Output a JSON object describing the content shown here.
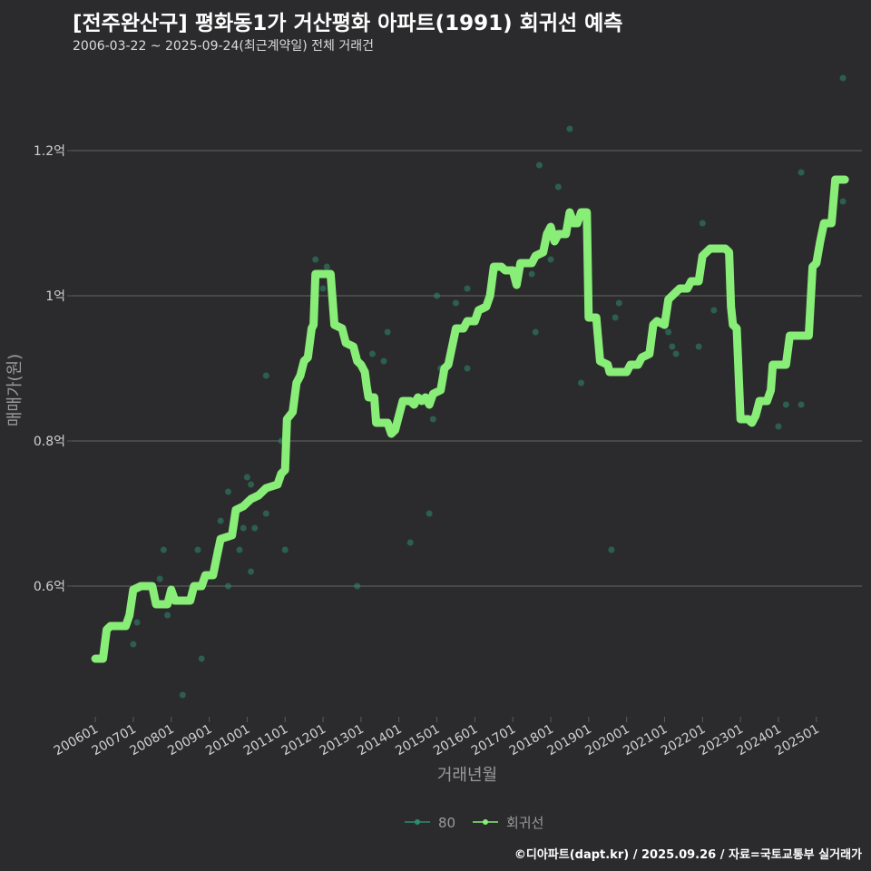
{
  "title": "[전주완산구] 평화동1가 거산평화 아파트(1991) 회귀선 예측",
  "subtitle": "2006-03-22 ~ 2025-09-24(최근계약일) 전체 거래건",
  "caption": "©디아파트(dapt.kr) / 2025.09.26 / 자료=국토교통부 실거래가",
  "colors": {
    "background": "#2b2b2d",
    "grid": "#5a5a5a",
    "scatter": "#2e8b6e",
    "line": "#88ee77",
    "text": "#d0d0d0"
  },
  "chart_data": {
    "type": "line",
    "xlabel": "거래년월",
    "ylabel": "매매가(원)",
    "ylim": [
      0.42,
      1.32
    ],
    "yticks": [
      {
        "value": 0.6,
        "label": "0.6억"
      },
      {
        "value": 0.8,
        "label": "0.8억"
      },
      {
        "value": 1.0,
        "label": "1억"
      },
      {
        "value": 1.2,
        "label": "1.2억"
      }
    ],
    "xlim": [
      2005.4,
      2026.2
    ],
    "xticks": [
      {
        "value": 2006,
        "label": "200601"
      },
      {
        "value": 2007,
        "label": "200701"
      },
      {
        "value": 2008,
        "label": "200801"
      },
      {
        "value": 2009,
        "label": "200901"
      },
      {
        "value": 2010,
        "label": "201001"
      },
      {
        "value": 2011,
        "label": "201101"
      },
      {
        "value": 2012,
        "label": "201201"
      },
      {
        "value": 2013,
        "label": "201301"
      },
      {
        "value": 2014,
        "label": "201401"
      },
      {
        "value": 2015,
        "label": "201501"
      },
      {
        "value": 2016,
        "label": "201601"
      },
      {
        "value": 2017,
        "label": "201701"
      },
      {
        "value": 2018,
        "label": "201801"
      },
      {
        "value": 2019,
        "label": "201901"
      },
      {
        "value": 2020,
        "label": "202001"
      },
      {
        "value": 2021,
        "label": "202101"
      },
      {
        "value": 2022,
        "label": "202201"
      },
      {
        "value": 2023,
        "label": "202301"
      },
      {
        "value": 2024,
        "label": "202401"
      },
      {
        "value": 2025,
        "label": "202501"
      }
    ],
    "legend": {
      "placement": "bottom",
      "entries": [
        {
          "name": "80",
          "kind": "scatter"
        },
        {
          "name": "회귀선",
          "kind": "line"
        }
      ]
    },
    "series": [
      {
        "name": "80",
        "type": "scatter",
        "points": [
          [
            2006.2,
            0.5
          ],
          [
            2007.0,
            0.52
          ],
          [
            2007.1,
            0.55
          ],
          [
            2007.7,
            0.61
          ],
          [
            2007.8,
            0.65
          ],
          [
            2007.9,
            0.56
          ],
          [
            2008.3,
            0.45
          ],
          [
            2008.7,
            0.65
          ],
          [
            2008.8,
            0.5
          ],
          [
            2009.2,
            0.65
          ],
          [
            2009.3,
            0.69
          ],
          [
            2009.5,
            0.73
          ],
          [
            2009.5,
            0.6
          ],
          [
            2009.8,
            0.65
          ],
          [
            2009.9,
            0.68
          ],
          [
            2010.0,
            0.75
          ],
          [
            2010.1,
            0.62
          ],
          [
            2010.1,
            0.74
          ],
          [
            2010.2,
            0.68
          ],
          [
            2010.5,
            0.7
          ],
          [
            2010.5,
            0.89
          ],
          [
            2010.9,
            0.8
          ],
          [
            2011.0,
            0.65
          ],
          [
            2011.8,
            1.05
          ],
          [
            2012.0,
            1.01
          ],
          [
            2012.1,
            1.04
          ],
          [
            2012.9,
            0.6
          ],
          [
            2013.3,
            0.92
          ],
          [
            2013.6,
            0.91
          ],
          [
            2013.7,
            0.95
          ],
          [
            2014.3,
            0.66
          ],
          [
            2014.6,
            0.86
          ],
          [
            2014.8,
            0.7
          ],
          [
            2014.9,
            0.83
          ],
          [
            2015.0,
            1.0
          ],
          [
            2015.1,
            0.9
          ],
          [
            2015.5,
            0.99
          ],
          [
            2015.8,
            0.9
          ],
          [
            2015.8,
            1.01
          ],
          [
            2017.5,
            1.03
          ],
          [
            2017.6,
            0.95
          ],
          [
            2017.7,
            1.18
          ],
          [
            2018.0,
            1.05
          ],
          [
            2018.2,
            1.15
          ],
          [
            2018.5,
            1.23
          ],
          [
            2018.8,
            0.88
          ],
          [
            2019.6,
            0.65
          ],
          [
            2019.7,
            0.97
          ],
          [
            2019.8,
            0.99
          ],
          [
            2021.1,
            0.95
          ],
          [
            2021.2,
            0.93
          ],
          [
            2021.3,
            0.92
          ],
          [
            2021.9,
            0.93
          ],
          [
            2022.0,
            1.1
          ],
          [
            2022.3,
            0.98
          ],
          [
            2024.0,
            0.82
          ],
          [
            2024.2,
            0.85
          ],
          [
            2024.6,
            0.85
          ],
          [
            2024.6,
            1.17
          ],
          [
            2025.7,
            1.13
          ],
          [
            2025.7,
            1.3
          ]
        ]
      },
      {
        "name": "회귀선",
        "type": "line",
        "points": [
          [
            2006.0,
            0.5
          ],
          [
            2006.2,
            0.5
          ],
          [
            2006.3,
            0.54
          ],
          [
            2006.4,
            0.545
          ],
          [
            2006.8,
            0.545
          ],
          [
            2006.9,
            0.56
          ],
          [
            2007.0,
            0.595
          ],
          [
            2007.2,
            0.6
          ],
          [
            2007.5,
            0.6
          ],
          [
            2007.6,
            0.575
          ],
          [
            2007.9,
            0.575
          ],
          [
            2008.0,
            0.595
          ],
          [
            2008.1,
            0.58
          ],
          [
            2008.5,
            0.58
          ],
          [
            2008.6,
            0.6
          ],
          [
            2008.8,
            0.6
          ],
          [
            2008.9,
            0.615
          ],
          [
            2009.1,
            0.615
          ],
          [
            2009.2,
            0.64
          ],
          [
            2009.3,
            0.665
          ],
          [
            2009.6,
            0.67
          ],
          [
            2009.7,
            0.705
          ],
          [
            2009.9,
            0.71
          ],
          [
            2010.0,
            0.715
          ],
          [
            2010.1,
            0.72
          ],
          [
            2010.3,
            0.725
          ],
          [
            2010.5,
            0.735
          ],
          [
            2010.8,
            0.74
          ],
          [
            2010.9,
            0.755
          ],
          [
            2011.0,
            0.76
          ],
          [
            2011.05,
            0.83
          ],
          [
            2011.2,
            0.84
          ],
          [
            2011.3,
            0.88
          ],
          [
            2011.4,
            0.89
          ],
          [
            2011.5,
            0.91
          ],
          [
            2011.6,
            0.915
          ],
          [
            2011.7,
            0.955
          ],
          [
            2011.75,
            0.96
          ],
          [
            2011.8,
            1.03
          ],
          [
            2012.2,
            1.03
          ],
          [
            2012.3,
            0.96
          ],
          [
            2012.5,
            0.955
          ],
          [
            2012.6,
            0.935
          ],
          [
            2012.8,
            0.93
          ],
          [
            2012.9,
            0.91
          ],
          [
            2013.0,
            0.905
          ],
          [
            2013.1,
            0.895
          ],
          [
            2013.15,
            0.875
          ],
          [
            2013.2,
            0.86
          ],
          [
            2013.35,
            0.86
          ],
          [
            2013.4,
            0.825
          ],
          [
            2013.7,
            0.825
          ],
          [
            2013.8,
            0.81
          ],
          [
            2013.9,
            0.815
          ],
          [
            2014.0,
            0.835
          ],
          [
            2014.1,
            0.855
          ],
          [
            2014.3,
            0.855
          ],
          [
            2014.4,
            0.85
          ],
          [
            2014.5,
            0.86
          ],
          [
            2014.6,
            0.855
          ],
          [
            2014.7,
            0.86
          ],
          [
            2014.8,
            0.85
          ],
          [
            2014.9,
            0.865
          ],
          [
            2015.1,
            0.87
          ],
          [
            2015.2,
            0.9
          ],
          [
            2015.3,
            0.905
          ],
          [
            2015.4,
            0.93
          ],
          [
            2015.5,
            0.955
          ],
          [
            2015.7,
            0.955
          ],
          [
            2015.8,
            0.965
          ],
          [
            2016.0,
            0.965
          ],
          [
            2016.1,
            0.98
          ],
          [
            2016.3,
            0.985
          ],
          [
            2016.4,
            1.0
          ],
          [
            2016.5,
            1.04
          ],
          [
            2016.7,
            1.04
          ],
          [
            2016.8,
            1.035
          ],
          [
            2017.0,
            1.035
          ],
          [
            2017.1,
            1.015
          ],
          [
            2017.2,
            1.045
          ],
          [
            2017.5,
            1.045
          ],
          [
            2017.6,
            1.055
          ],
          [
            2017.8,
            1.06
          ],
          [
            2017.9,
            1.085
          ],
          [
            2018.0,
            1.095
          ],
          [
            2018.1,
            1.075
          ],
          [
            2018.2,
            1.085
          ],
          [
            2018.4,
            1.085
          ],
          [
            2018.5,
            1.115
          ],
          [
            2018.6,
            1.1
          ],
          [
            2018.7,
            1.1
          ],
          [
            2018.8,
            1.115
          ],
          [
            2018.95,
            1.115
          ],
          [
            2019.0,
            0.97
          ],
          [
            2019.2,
            0.97
          ],
          [
            2019.3,
            0.91
          ],
          [
            2019.5,
            0.905
          ],
          [
            2019.55,
            0.895
          ],
          [
            2020.0,
            0.895
          ],
          [
            2020.1,
            0.905
          ],
          [
            2020.3,
            0.905
          ],
          [
            2020.4,
            0.915
          ],
          [
            2020.6,
            0.92
          ],
          [
            2020.7,
            0.96
          ],
          [
            2020.8,
            0.965
          ],
          [
            2021.0,
            0.96
          ],
          [
            2021.1,
            0.995
          ],
          [
            2021.2,
            1.0
          ],
          [
            2021.3,
            1.005
          ],
          [
            2021.4,
            1.01
          ],
          [
            2021.6,
            1.01
          ],
          [
            2021.7,
            1.02
          ],
          [
            2021.9,
            1.02
          ],
          [
            2022.0,
            1.055
          ],
          [
            2022.1,
            1.06
          ],
          [
            2022.2,
            1.065
          ],
          [
            2022.6,
            1.065
          ],
          [
            2022.7,
            1.06
          ],
          [
            2022.75,
            0.985
          ],
          [
            2022.8,
            0.96
          ],
          [
            2022.9,
            0.955
          ],
          [
            2023.0,
            0.83
          ],
          [
            2023.2,
            0.83
          ],
          [
            2023.3,
            0.825
          ],
          [
            2023.4,
            0.835
          ],
          [
            2023.5,
            0.855
          ],
          [
            2023.7,
            0.855
          ],
          [
            2023.8,
            0.87
          ],
          [
            2023.85,
            0.905
          ],
          [
            2024.2,
            0.905
          ],
          [
            2024.3,
            0.945
          ],
          [
            2024.8,
            0.945
          ],
          [
            2024.9,
            1.04
          ],
          [
            2025.0,
            1.045
          ],
          [
            2025.1,
            1.075
          ],
          [
            2025.2,
            1.1
          ],
          [
            2025.4,
            1.1
          ],
          [
            2025.45,
            1.13
          ],
          [
            2025.5,
            1.16
          ],
          [
            2025.75,
            1.16
          ]
        ]
      }
    ]
  }
}
